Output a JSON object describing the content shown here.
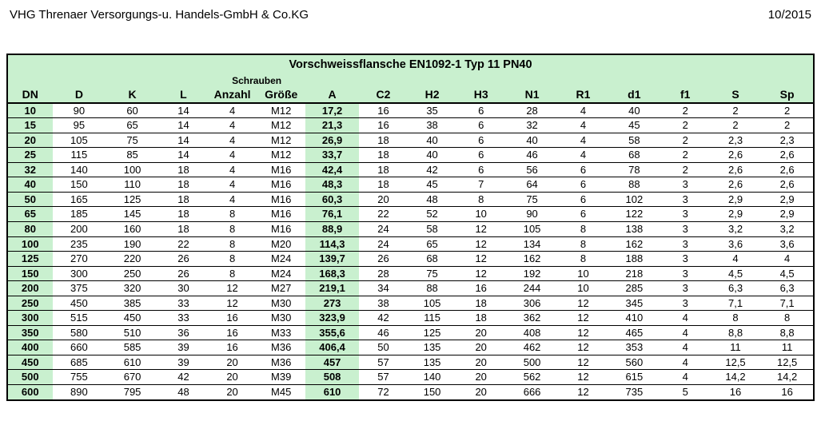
{
  "header": {
    "company": "VHG Threnaer Versorgungs-u. Handels-GmbH & Co.KG",
    "date": "10/2015"
  },
  "table": {
    "title": "Vorschweissflansche EN1092-1 Typ 11 PN40",
    "schrauben_label": "Schrauben",
    "columns": [
      "DN",
      "D",
      "K",
      "L",
      "Anzahl",
      "Größe",
      "A",
      "C2",
      "H2",
      "H3",
      "N1",
      "R1",
      "d1",
      "f1",
      "S",
      "Sp"
    ],
    "rows": [
      [
        "10",
        "90",
        "60",
        "14",
        "4",
        "M12",
        "17,2",
        "16",
        "35",
        "6",
        "28",
        "4",
        "40",
        "2",
        "2",
        "2"
      ],
      [
        "15",
        "95",
        "65",
        "14",
        "4",
        "M12",
        "21,3",
        "16",
        "38",
        "6",
        "32",
        "4",
        "45",
        "2",
        "2",
        "2"
      ],
      [
        "20",
        "105",
        "75",
        "14",
        "4",
        "M12",
        "26,9",
        "18",
        "40",
        "6",
        "40",
        "4",
        "58",
        "2",
        "2,3",
        "2,3"
      ],
      [
        "25",
        "115",
        "85",
        "14",
        "4",
        "M12",
        "33,7",
        "18",
        "40",
        "6",
        "46",
        "4",
        "68",
        "2",
        "2,6",
        "2,6"
      ],
      [
        "32",
        "140",
        "100",
        "18",
        "4",
        "M16",
        "42,4",
        "18",
        "42",
        "6",
        "56",
        "6",
        "78",
        "2",
        "2,6",
        "2,6"
      ],
      [
        "40",
        "150",
        "110",
        "18",
        "4",
        "M16",
        "48,3",
        "18",
        "45",
        "7",
        "64",
        "6",
        "88",
        "3",
        "2,6",
        "2,6"
      ],
      [
        "50",
        "165",
        "125",
        "18",
        "4",
        "M16",
        "60,3",
        "20",
        "48",
        "8",
        "75",
        "6",
        "102",
        "3",
        "2,9",
        "2,9"
      ],
      [
        "65",
        "185",
        "145",
        "18",
        "8",
        "M16",
        "76,1",
        "22",
        "52",
        "10",
        "90",
        "6",
        "122",
        "3",
        "2,9",
        "2,9"
      ],
      [
        "80",
        "200",
        "160",
        "18",
        "8",
        "M16",
        "88,9",
        "24",
        "58",
        "12",
        "105",
        "8",
        "138",
        "3",
        "3,2",
        "3,2"
      ],
      [
        "100",
        "235",
        "190",
        "22",
        "8",
        "M20",
        "114,3",
        "24",
        "65",
        "12",
        "134",
        "8",
        "162",
        "3",
        "3,6",
        "3,6"
      ],
      [
        "125",
        "270",
        "220",
        "26",
        "8",
        "M24",
        "139,7",
        "26",
        "68",
        "12",
        "162",
        "8",
        "188",
        "3",
        "4",
        "4"
      ],
      [
        "150",
        "300",
        "250",
        "26",
        "8",
        "M24",
        "168,3",
        "28",
        "75",
        "12",
        "192",
        "10",
        "218",
        "3",
        "4,5",
        "4,5"
      ],
      [
        "200",
        "375",
        "320",
        "30",
        "12",
        "M27",
        "219,1",
        "34",
        "88",
        "16",
        "244",
        "10",
        "285",
        "3",
        "6,3",
        "6,3"
      ],
      [
        "250",
        "450",
        "385",
        "33",
        "12",
        "M30",
        "273",
        "38",
        "105",
        "18",
        "306",
        "12",
        "345",
        "3",
        "7,1",
        "7,1"
      ],
      [
        "300",
        "515",
        "450",
        "33",
        "16",
        "M30",
        "323,9",
        "42",
        "115",
        "18",
        "362",
        "12",
        "410",
        "4",
        "8",
        "8"
      ],
      [
        "350",
        "580",
        "510",
        "36",
        "16",
        "M33",
        "355,6",
        "46",
        "125",
        "20",
        "408",
        "12",
        "465",
        "4",
        "8,8",
        "8,8"
      ],
      [
        "400",
        "660",
        "585",
        "39",
        "16",
        "M36",
        "406,4",
        "50",
        "135",
        "20",
        "462",
        "12",
        "353",
        "4",
        "11",
        "11"
      ],
      [
        "450",
        "685",
        "610",
        "39",
        "20",
        "M36",
        "457",
        "57",
        "135",
        "20",
        "500",
        "12",
        "560",
        "4",
        "12,5",
        "12,5"
      ],
      [
        "500",
        "755",
        "670",
        "42",
        "20",
        "M39",
        "508",
        "57",
        "140",
        "20",
        "562",
        "12",
        "615",
        "4",
        "14,2",
        "14,2"
      ],
      [
        "600",
        "890",
        "795",
        "48",
        "20",
        "M45",
        "610",
        "72",
        "150",
        "20",
        "666",
        "12",
        "735",
        "5",
        "16",
        "16"
      ]
    ]
  },
  "style": {
    "highlight_bg": "#c9f0cf",
    "border_color": "#000000",
    "text_color": "#000000",
    "font_family": "Arial",
    "dn_col_index": 0,
    "a_col_index": 6
  }
}
